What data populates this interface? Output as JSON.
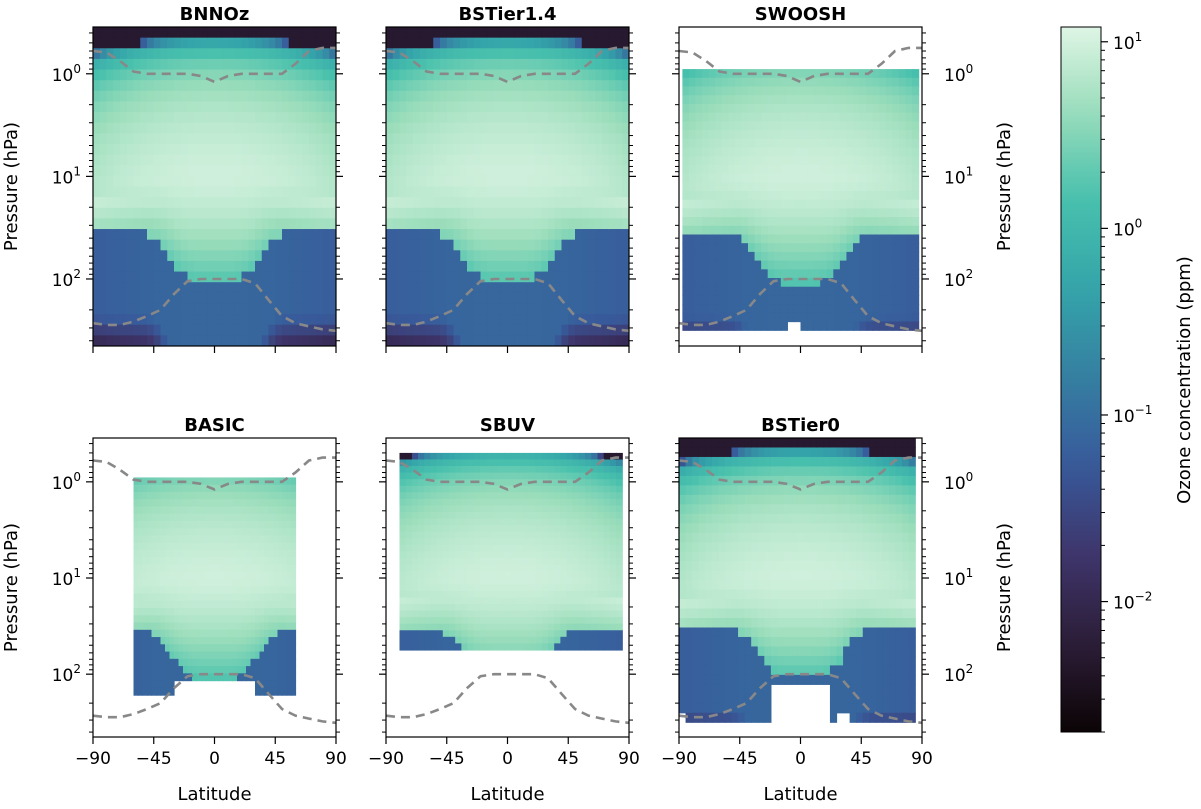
{
  "figure": {
    "colorbar_label": "Ozone concentration (ppm)",
    "xlabel": "Latitude",
    "ylabel": "Pressure (hPa)"
  },
  "chart_data": {
    "type": "heatmap",
    "colormap": "mako",
    "color_scale": "log",
    "color_range_ppm": [
      0.002,
      12
    ],
    "colorbar_ticks": [
      {
        "value": 10,
        "label": "10",
        "exp": "1"
      },
      {
        "value": 1,
        "label": "10",
        "exp": "0"
      },
      {
        "value": 0.1,
        "label": "10",
        "exp": "−1"
      },
      {
        "value": 0.01,
        "label": "10",
        "exp": "−2"
      }
    ],
    "xlim": [
      -90,
      90
    ],
    "ylim_hpa": [
      0.35,
      450
    ],
    "yscale": "log",
    "yaxis_inverted": true,
    "x_ticks": [
      {
        "value": -90,
        "label": "−90"
      },
      {
        "value": -45,
        "label": "−45"
      },
      {
        "value": 0,
        "label": "0"
      },
      {
        "value": 45,
        "label": "45"
      },
      {
        "value": 90,
        "label": "90"
      }
    ],
    "y_ticks": [
      {
        "value": 1,
        "label": "10",
        "exp": "0"
      },
      {
        "value": 10,
        "label": "10",
        "exp": "1"
      },
      {
        "value": 100,
        "label": "10",
        "exp": "2"
      }
    ],
    "reference_lines": {
      "style": "dashed",
      "color": "#888888",
      "upper_boundary_hpa": {
        "lat": [
          -90,
          -80,
          -70,
          -60,
          -50,
          -40,
          -30,
          -20,
          -10,
          0,
          10,
          20,
          30,
          40,
          50,
          60,
          70,
          80,
          90
        ],
        "p": [
          0.6,
          0.62,
          0.75,
          0.95,
          1.0,
          1.0,
          1.0,
          1.0,
          1.05,
          1.2,
          1.05,
          1.0,
          1.0,
          1.0,
          1.0,
          0.8,
          0.6,
          0.56,
          0.56
        ]
      },
      "lower_boundary_hpa": {
        "lat": [
          -90,
          -80,
          -70,
          -60,
          -50,
          -40,
          -30,
          -20,
          -10,
          0,
          10,
          20,
          30,
          40,
          50,
          60,
          70,
          80,
          90
        ],
        "p": [
          270,
          280,
          280,
          260,
          230,
          200,
          140,
          105,
          100,
          100,
          100,
          100,
          110,
          160,
          230,
          270,
          290,
          310,
          320
        ]
      }
    },
    "panels": [
      {
        "title": "BNNOz",
        "lat_range": [
          -90,
          90
        ],
        "p_range_hpa": [
          0.35,
          450
        ],
        "missing": []
      },
      {
        "title": "BSTier1.4",
        "lat_range": [
          -90,
          90
        ],
        "p_range_hpa": [
          0.35,
          450
        ],
        "missing": []
      },
      {
        "title": "SWOOSH",
        "lat_range": [
          -87.5,
          87.5
        ],
        "p_range_hpa": [
          0.9,
          316
        ],
        "missing": [
          {
            "lat": [
              -10,
              0
            ],
            "p": [
              95,
              105
            ]
          },
          {
            "lat": [
              -10,
              0
            ],
            "p": [
              250,
              316
            ]
          }
        ]
      },
      {
        "title": "BASIC",
        "lat_range": [
          -60,
          60
        ],
        "p_range_hpa": [
          0.9,
          165
        ],
        "missing": [
          {
            "lat": [
              -30,
              30
            ],
            "p": [
              110,
              165
            ]
          }
        ]
      },
      {
        "title": "SBUV",
        "lat_range": [
          -80,
          85
        ],
        "p_range_hpa": [
          0.5,
          56
        ],
        "missing": []
      },
      {
        "title": "BSTier0",
        "lat_range": [
          -90,
          85
        ],
        "p_range_hpa": [
          0.35,
          316
        ],
        "missing": [
          {
            "lat": [
              -90,
              -85
            ],
            "p": [
              260,
              316
            ]
          },
          {
            "lat": [
              -20,
              20
            ],
            "p": [
              120,
              316
            ]
          },
          {
            "lat": [
              25,
              35
            ],
            "p": [
              260,
              316
            ]
          }
        ]
      }
    ]
  }
}
